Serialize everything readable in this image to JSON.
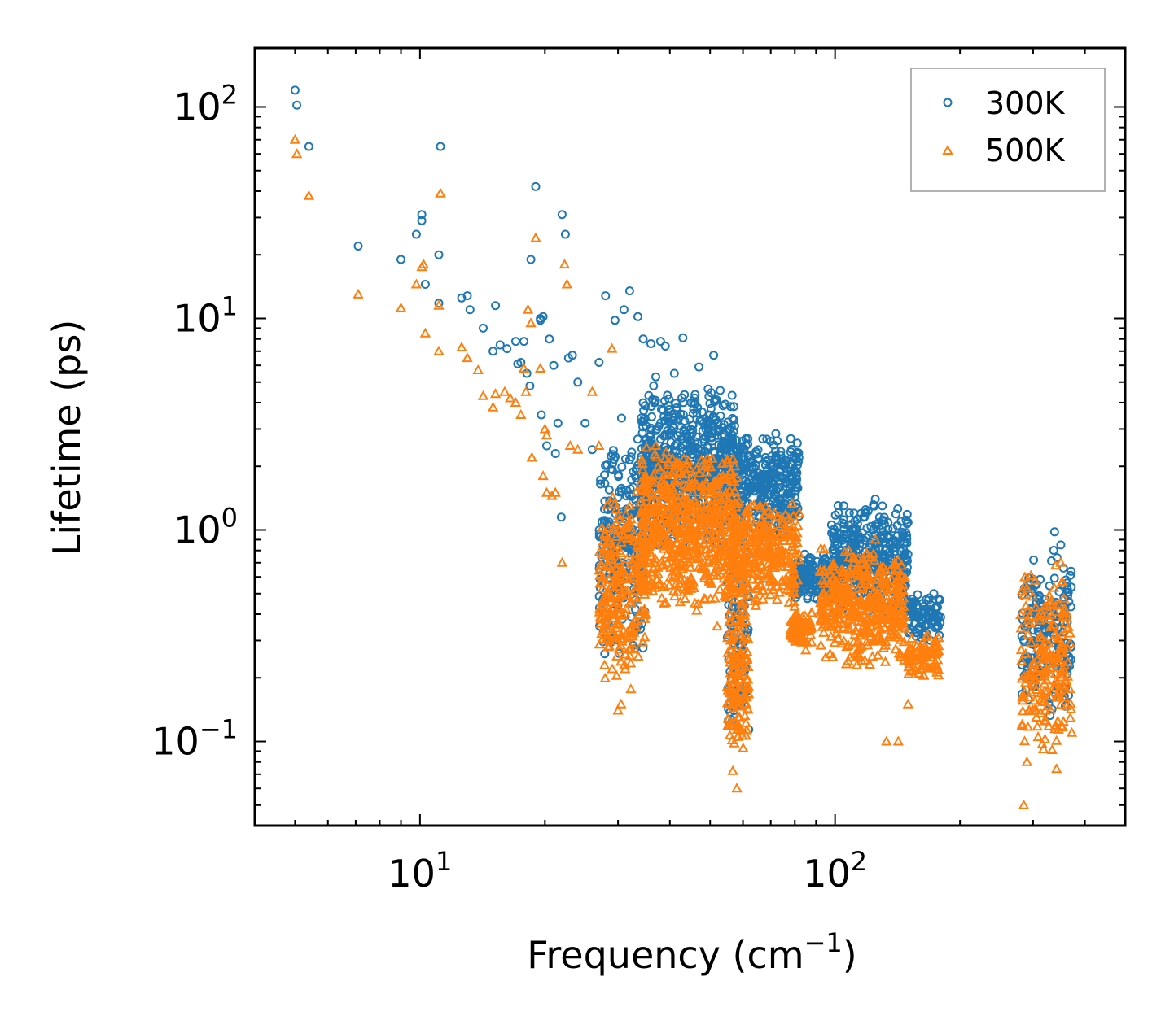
{
  "chart_data": {
    "type": "scatter",
    "xscale": "log",
    "yscale": "log",
    "xlim": [
      4,
      500
    ],
    "ylim": [
      0.04,
      190
    ],
    "xlabel": "Frequency (cm",
    "xlabel_sup": "−1",
    "xlabel_end": ")",
    "ylabel": "Lifetime (ps)",
    "xticks": [
      {
        "value": 10,
        "base": "10",
        "exp": "1"
      },
      {
        "value": 100,
        "base": "10",
        "exp": "2"
      }
    ],
    "yticks": [
      {
        "value": 0.1,
        "base": "10",
        "exp": "−1"
      },
      {
        "value": 1,
        "base": "10",
        "exp": "0"
      },
      {
        "value": 10,
        "base": "10",
        "exp": "1"
      },
      {
        "value": 100,
        "base": "10",
        "exp": "2"
      }
    ],
    "legend_position": "top-right",
    "series": [
      {
        "name": "300K",
        "marker": "circle",
        "color": "#1f77b4",
        "points": [
          [
            5.0,
            120
          ],
          [
            5.05,
            102
          ],
          [
            5.4,
            65
          ],
          [
            7.1,
            22
          ],
          [
            9.0,
            19
          ],
          [
            9.8,
            25
          ],
          [
            10.1,
            31
          ],
          [
            10.1,
            29
          ],
          [
            10.3,
            14.5
          ],
          [
            11.1,
            20
          ],
          [
            11.2,
            65
          ],
          [
            11.1,
            11.8
          ],
          [
            12.6,
            12.5
          ],
          [
            13.0,
            12.8
          ],
          [
            13.2,
            11
          ],
          [
            14.2,
            9
          ],
          [
            15.2,
            11.5
          ],
          [
            15.0,
            7
          ],
          [
            15.6,
            7.5
          ],
          [
            16.2,
            7.2
          ],
          [
            17.0,
            7.8
          ],
          [
            17.2,
            6.1
          ],
          [
            17.5,
            6.2
          ],
          [
            17.8,
            7.8
          ],
          [
            18.1,
            5.5
          ],
          [
            18.5,
            19
          ],
          [
            18.4,
            4.8
          ],
          [
            19.0,
            42
          ],
          [
            19.5,
            10
          ],
          [
            19.8,
            10.2
          ],
          [
            19.5,
            9.8
          ],
          [
            20.5,
            8
          ],
          [
            21.0,
            6
          ],
          [
            21.5,
            3.2
          ],
          [
            22.0,
            31
          ],
          [
            22.4,
            25
          ],
          [
            22.8,
            6.5
          ],
          [
            23.3,
            6.7
          ],
          [
            21.2,
            2.3
          ],
          [
            21.9,
            1.15
          ],
          [
            20.2,
            2.5
          ],
          [
            19.6,
            3.5
          ],
          [
            24.0,
            5.0
          ],
          [
            25.0,
            3.2
          ],
          [
            26.0,
            2.4
          ],
          [
            27.0,
            6.2
          ],
          [
            28.0,
            12.8
          ],
          [
            29.5,
            9.8
          ],
          [
            31.0,
            11
          ],
          [
            32.0,
            13.5
          ],
          [
            33.5,
            10.2
          ],
          [
            34.5,
            8
          ],
          [
            36.0,
            7.6
          ],
          [
            37.0,
            5.3
          ],
          [
            38.0,
            7.8
          ],
          [
            39.0,
            7.4
          ],
          [
            41.0,
            5.5
          ],
          [
            43.0,
            8.1
          ],
          [
            47.0,
            5.9
          ],
          [
            51.0,
            6.7
          ],
          [
            45.0,
            4.0
          ],
          [
            55.0,
            3.0
          ],
          [
            60.0,
            2.4
          ],
          [
            72.0,
            2.85
          ],
          [
            74.0,
            2.35
          ],
          [
            78.0,
            1.9
          ],
          [
            82.0,
            0.7
          ],
          [
            90.0,
            0.6
          ],
          [
            100.0,
            0.85
          ],
          [
            110.0,
            0.9
          ],
          [
            118.0,
            1.2
          ],
          [
            125.0,
            1.4
          ],
          [
            130.0,
            1.3
          ],
          [
            140.0,
            0.7
          ],
          [
            145.0,
            0.42
          ],
          [
            160.0,
            0.35
          ],
          [
            173.0,
            0.5
          ],
          [
            170.0,
            0.3
          ],
          [
            290.0,
            0.21
          ],
          [
            300.0,
            0.3
          ],
          [
            320.0,
            0.35
          ],
          [
            338.0,
            0.98
          ],
          [
            350.0,
            0.85
          ],
          [
            360.0,
            0.58
          ],
          [
            370.0,
            0.28
          ],
          [
            330.0,
            0.16
          ]
        ],
        "clusters": [
          {
            "x": [
              27,
              35
            ],
            "y": [
              0.22,
              3.6
            ],
            "n": 260
          },
          {
            "x": [
              34,
              58
            ],
            "y": [
              0.8,
              5.0
            ],
            "n": 640
          },
          {
            "x": [
              56,
              82
            ],
            "y": [
              0.9,
              2.9
            ],
            "n": 340
          },
          {
            "x": [
              55,
              62
            ],
            "y": [
              0.1,
              1.2
            ],
            "n": 110
          },
          {
            "x": [
              80,
              100
            ],
            "y": [
              0.45,
              0.8
            ],
            "n": 150
          },
          {
            "x": [
              98,
              150
            ],
            "y": [
              0.35,
              1.4
            ],
            "n": 420
          },
          {
            "x": [
              150,
              180
            ],
            "y": [
              0.3,
              0.5
            ],
            "n": 90
          },
          {
            "x": [
              280,
              372
            ],
            "y": [
              0.13,
              0.85
            ],
            "n": 190
          }
        ]
      },
      {
        "name": "500K",
        "marker": "triangle",
        "color": "#ff7f0e",
        "points": [
          [
            5.0,
            70
          ],
          [
            5.05,
            60
          ],
          [
            5.4,
            38
          ],
          [
            7.1,
            13
          ],
          [
            9.0,
            11.2
          ],
          [
            9.8,
            14.5
          ],
          [
            10.1,
            17.5
          ],
          [
            10.2,
            18
          ],
          [
            10.3,
            8.5
          ],
          [
            11.1,
            7
          ],
          [
            11.2,
            39
          ],
          [
            11.1,
            11.5
          ],
          [
            12.6,
            7.3
          ],
          [
            13.0,
            6.5
          ],
          [
            13.8,
            5.7
          ],
          [
            14.2,
            4.3
          ],
          [
            15.0,
            3.8
          ],
          [
            15.2,
            4.4
          ],
          [
            16.0,
            4.5
          ],
          [
            16.5,
            4.2
          ],
          [
            17.0,
            4.0
          ],
          [
            17.5,
            3.5
          ],
          [
            17.8,
            5.8
          ],
          [
            18.0,
            4.5
          ],
          [
            18.2,
            11
          ],
          [
            18.5,
            9.5
          ],
          [
            18.6,
            2.2
          ],
          [
            19.0,
            24
          ],
          [
            19.5,
            5.8
          ],
          [
            20.0,
            3.0
          ],
          [
            20.2,
            2.8
          ],
          [
            19.8,
            1.8
          ],
          [
            20.2,
            1.5
          ],
          [
            20.8,
            1.45
          ],
          [
            21.2,
            1.5
          ],
          [
            22.0,
            0.7
          ],
          [
            22.3,
            18
          ],
          [
            22.6,
            14.5
          ],
          [
            23.0,
            2.5
          ],
          [
            24.0,
            2.4
          ],
          [
            26.0,
            4.5
          ],
          [
            27.0,
            2.5
          ],
          [
            29.0,
            7.2
          ],
          [
            30.0,
            0.14
          ],
          [
            30.5,
            0.15
          ],
          [
            32.0,
            1.3
          ],
          [
            34.0,
            1.35
          ],
          [
            37.0,
            2.5
          ],
          [
            40.0,
            1.3
          ],
          [
            46.0,
            0.45
          ],
          [
            52.0,
            0.35
          ],
          [
            56.0,
            0.3
          ],
          [
            58.0,
            0.06
          ],
          [
            67.0,
            0.47
          ],
          [
            80.0,
            0.32
          ],
          [
            85.0,
            0.27
          ],
          [
            95.0,
            0.25
          ],
          [
            118.0,
            0.4
          ],
          [
            125.0,
            0.9
          ],
          [
            133.0,
            0.1
          ],
          [
            142.0,
            0.1
          ],
          [
            150.0,
            0.15
          ],
          [
            170.0,
            0.27
          ],
          [
            285.0,
            0.05
          ],
          [
            290.0,
            0.08
          ],
          [
            300.0,
            0.22
          ],
          [
            340.0,
            0.68
          ],
          [
            350.0,
            0.7
          ],
          [
            372.0,
            0.11
          ]
        ],
        "clusters": [
          {
            "x": [
              27,
              35
            ],
            "y": [
              0.17,
              1.6
            ],
            "n": 240
          },
          {
            "x": [
              34,
              58
            ],
            "y": [
              0.4,
              2.5
            ],
            "n": 640
          },
          {
            "x": [
              56,
              82
            ],
            "y": [
              0.4,
              1.5
            ],
            "n": 320
          },
          {
            "x": [
              55,
              62
            ],
            "y": [
              0.065,
              0.6
            ],
            "n": 140
          },
          {
            "x": [
              78,
              88
            ],
            "y": [
              0.28,
              0.42
            ],
            "n": 70
          },
          {
            "x": [
              92,
              148
            ],
            "y": [
              0.22,
              0.9
            ],
            "n": 420
          },
          {
            "x": [
              150,
              178
            ],
            "y": [
              0.2,
              0.32
            ],
            "n": 80
          },
          {
            "x": [
              280,
              372
            ],
            "y": [
              0.07,
              0.7
            ],
            "n": 200
          }
        ]
      }
    ]
  }
}
